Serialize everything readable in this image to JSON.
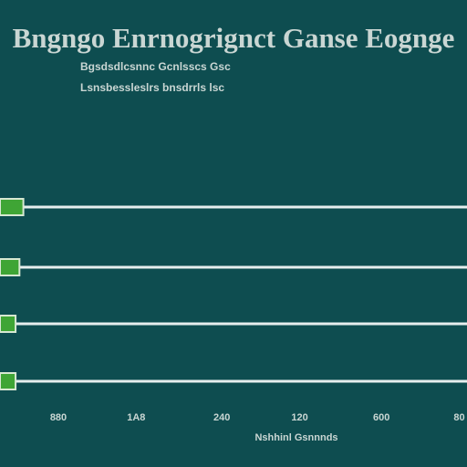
{
  "chart_data": {
    "type": "hbar",
    "title": "Bngngo Enrnogrignct Ganse Eognge",
    "subtitle": [
      "Bgsdsdlcsnnc Gcnlsscs Gsc",
      "Lsnsbessleslrs bnsdrrls lsc"
    ],
    "x_label": "Nshhinl Gsnnnds",
    "categories": [
      null,
      null,
      null,
      null
    ],
    "values": [
      0.3,
      0.25,
      0.2,
      0.2
    ],
    "color": "#3fa535",
    "xlim": [
      0,
      6
    ],
    "xticks": [
      {
        "value": 0.75,
        "label": "880"
      },
      {
        "value": 1.75,
        "label": "1A8"
      },
      {
        "value": 2.85,
        "label": "240"
      },
      {
        "value": 3.85,
        "label": "120"
      },
      {
        "value": 4.9,
        "label": "600"
      },
      {
        "value": 5.9,
        "label": "80"
      }
    ]
  }
}
